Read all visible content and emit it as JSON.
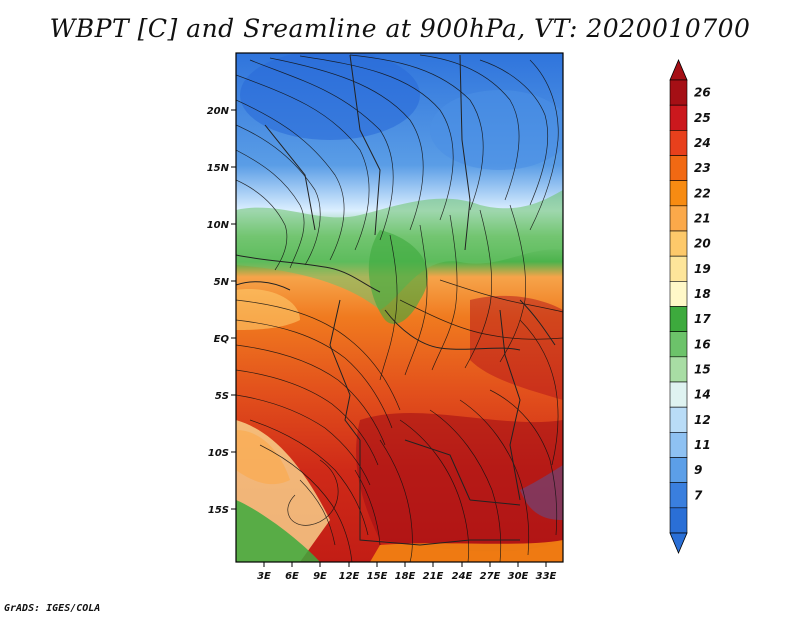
{
  "title": "WBPT [C] and Sreamline at 900hPa, VT: 2020010700",
  "credit": "GrADS: IGES/COLA",
  "map": {
    "lat_labels": [
      "20N",
      "15N",
      "10N",
      "5N",
      "EQ",
      "5S",
      "10S",
      "15S"
    ],
    "lon_labels": [
      "3E",
      "6E",
      "9E",
      "12E",
      "15E",
      "18E",
      "21E",
      "24E",
      "27E",
      "30E",
      "33E"
    ]
  },
  "colorbar": {
    "labels": [
      "26",
      "25",
      "24",
      "23",
      "22",
      "21",
      "20",
      "19",
      "18",
      "17",
      "16",
      "15",
      "14",
      "12",
      "11",
      "9",
      "7"
    ],
    "colors": [
      "#a50f15",
      "#cb181d",
      "#e8401c",
      "#f16913",
      "#f78b12",
      "#fba94a",
      "#fdc96a",
      "#fde59a",
      "#fff8c8",
      "#3daa3d",
      "#6cc36a",
      "#a8dda4",
      "#dff3f1",
      "#b9dcf7",
      "#8ec1f2",
      "#5c9fe8",
      "#3a7fde",
      "#2a6fd6"
    ]
  }
}
